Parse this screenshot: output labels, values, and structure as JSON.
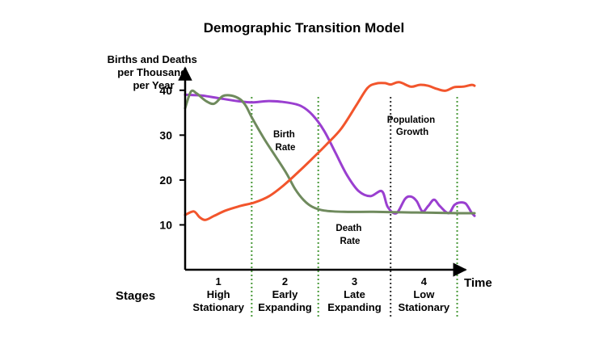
{
  "chart_data": {
    "type": "line",
    "title": "Demographic Transition Model",
    "ylabel": [
      "Births and Deaths",
      "per Thousand",
      "per Year"
    ],
    "xlabel": "Time",
    "ylim": [
      0,
      45
    ],
    "xlim": [
      0,
      100
    ],
    "yticks": [
      {
        "value": 40,
        "label": "40"
      },
      {
        "value": 30,
        "label": "30"
      },
      {
        "value": 20,
        "label": "20"
      },
      {
        "value": 10,
        "label": "10"
      }
    ],
    "stage_dividers": [
      23,
      46,
      71,
      94
    ],
    "stage_divider_colors": [
      "#4a9a3a",
      "#4a9a3a",
      "#333333",
      "#4a9a3a"
    ],
    "stages_label": "Stages",
    "stages": [
      {
        "number": "1",
        "lines": [
          "High",
          "Stationary"
        ],
        "center": 11.5
      },
      {
        "number": "2",
        "lines": [
          "Early",
          "Expanding"
        ],
        "center": 34.5
      },
      {
        "number": "3",
        "lines": [
          "Late",
          "Expanding"
        ],
        "center": 58.5
      },
      {
        "number": "4",
        "lines": [
          "Low",
          "Stationary"
        ],
        "center": 82.5
      }
    ],
    "series": [
      {
        "name": "Birth Rate",
        "label_lines": [
          "Birth",
          "Rate"
        ],
        "color": "#9a3fd0",
        "x": [
          0,
          6,
          12,
          18,
          23,
          29,
          35,
          40,
          44,
          48,
          52,
          56,
          60,
          64,
          68,
          70,
          73,
          76,
          78,
          80,
          82,
          84,
          86,
          88,
          91,
          93,
          95,
          97,
          99,
          100
        ],
        "y": [
          39,
          38.8,
          38.2,
          37.6,
          37.3,
          37.6,
          37.3,
          36.5,
          34.5,
          31,
          26,
          21,
          17.5,
          16.4,
          17.5,
          14,
          12.6,
          15.8,
          16.3,
          15.3,
          13,
          14.2,
          15.6,
          14.2,
          12.6,
          14.4,
          15,
          14.7,
          12.7,
          12
        ]
      },
      {
        "name": "Death Rate",
        "label_lines": [
          "Death",
          "Rate"
        ],
        "color": "#6f8a5d",
        "x": [
          0,
          2,
          4,
          7,
          10,
          13,
          16,
          19,
          21,
          23,
          27,
          31,
          35,
          38,
          41,
          44,
          48,
          55,
          65,
          75,
          85,
          95,
          100
        ],
        "y": [
          36,
          39.7,
          39.3,
          37.7,
          37,
          38.7,
          38.8,
          38,
          36.5,
          34,
          29.5,
          25.5,
          21.5,
          18,
          15.5,
          14,
          13.2,
          12.9,
          12.9,
          12.8,
          12.7,
          12.6,
          12.6
        ]
      },
      {
        "name": "Population Growth",
        "label_lines": [
          "Population",
          "Growth"
        ],
        "color": "#f2552c",
        "x": [
          0,
          3,
          5,
          7,
          10,
          14,
          19,
          24,
          29,
          34,
          39,
          44,
          49,
          54,
          59,
          63,
          66,
          69,
          71,
          74,
          78,
          81,
          84,
          87,
          90,
          93,
          96,
          99,
          100
        ],
        "y": [
          12.2,
          13,
          11.7,
          11.1,
          12,
          13.2,
          14.2,
          15,
          16.4,
          18.8,
          21.7,
          24.8,
          28,
          31.5,
          36.5,
          40.5,
          41.5,
          41.6,
          41.3,
          41.8,
          40.8,
          41.2,
          41,
          40.3,
          39.9,
          40.7,
          40.8,
          41.2,
          41
        ]
      }
    ]
  }
}
